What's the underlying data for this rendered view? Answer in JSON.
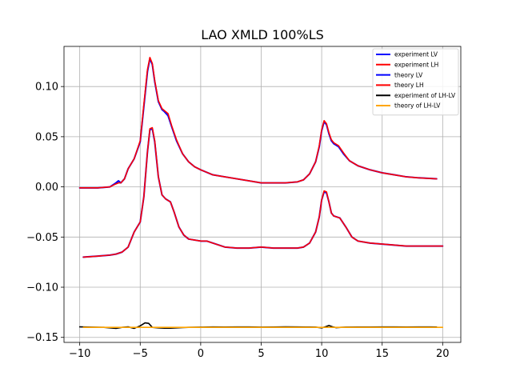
{
  "chart_data": {
    "type": "line",
    "title": "LAO XMLD 100%LS",
    "xlabel": "",
    "ylabel": "",
    "xlim": [
      -11.3,
      21.5
    ],
    "ylim": [
      -0.155,
      0.14
    ],
    "x_ticks": [
      -10,
      -5,
      0,
      5,
      10,
      15,
      20
    ],
    "x_tick_labels": [
      "−10",
      "−5",
      "0",
      "5",
      "10",
      "15",
      "20"
    ],
    "y_ticks": [
      0.1,
      0.05,
      0.0,
      -0.05,
      -0.1,
      -0.15
    ],
    "y_tick_labels": [
      "0.10",
      "0.05",
      "0.00",
      "−0.05",
      "−0.10",
      "−0.15"
    ],
    "grid": true,
    "legend_position": "top-right",
    "series": [
      {
        "name": "experiment LV",
        "color": "#0000ff",
        "x": [
          -10,
          -8.5,
          -7.5,
          -7.0,
          -6.8,
          -6.6,
          -6.3,
          -6.0,
          -5.5,
          -5.0,
          -4.7,
          -4.4,
          -4.2,
          -4.0,
          -3.8,
          -3.5,
          -3.2,
          -3.0,
          -2.7,
          -2.4,
          -2.0,
          -1.5,
          -1.0,
          -0.5,
          0,
          1,
          2,
          3,
          4,
          5,
          6,
          7,
          8,
          8.5,
          9.0,
          9.5,
          9.8,
          10.0,
          10.2,
          10.4,
          10.6,
          10.8,
          11.0,
          11.4,
          11.8,
          12.3,
          13,
          14,
          15,
          16,
          17,
          18,
          19.5
        ],
        "y": [
          -0.001,
          -0.001,
          0.0,
          0.004,
          0.006,
          0.004,
          0.008,
          0.018,
          0.028,
          0.045,
          0.08,
          0.115,
          0.128,
          0.122,
          0.105,
          0.085,
          0.077,
          0.075,
          0.071,
          0.06,
          0.046,
          0.033,
          0.025,
          0.02,
          0.017,
          0.012,
          0.01,
          0.008,
          0.006,
          0.004,
          0.004,
          0.004,
          0.005,
          0.007,
          0.013,
          0.025,
          0.04,
          0.056,
          0.065,
          0.062,
          0.053,
          0.046,
          0.043,
          0.04,
          0.033,
          0.026,
          0.021,
          0.017,
          0.014,
          0.012,
          0.01,
          0.009,
          0.008
        ]
      },
      {
        "name": "experiment LH",
        "color": "#ff0000",
        "x": [
          -10,
          -8.5,
          -7.5,
          -7.0,
          -6.8,
          -6.6,
          -6.3,
          -6.0,
          -5.5,
          -5.0,
          -4.7,
          -4.4,
          -4.2,
          -4.0,
          -3.8,
          -3.5,
          -3.2,
          -3.0,
          -2.7,
          -2.4,
          -2.0,
          -1.5,
          -1.0,
          -0.5,
          0,
          1,
          2,
          3,
          4,
          5,
          6,
          7,
          8,
          8.5,
          9.0,
          9.5,
          9.8,
          10.0,
          10.2,
          10.4,
          10.6,
          10.8,
          11.0,
          11.4,
          11.8,
          12.3,
          13,
          14,
          15,
          16,
          17,
          18,
          19.5
        ],
        "y": [
          -0.001,
          -0.001,
          0.0,
          0.003,
          0.004,
          0.004,
          0.008,
          0.018,
          0.028,
          0.046,
          0.082,
          0.117,
          0.129,
          0.123,
          0.106,
          0.086,
          0.078,
          0.076,
          0.073,
          0.061,
          0.047,
          0.033,
          0.025,
          0.02,
          0.017,
          0.012,
          0.01,
          0.008,
          0.006,
          0.004,
          0.004,
          0.004,
          0.005,
          0.007,
          0.013,
          0.025,
          0.041,
          0.057,
          0.066,
          0.063,
          0.054,
          0.047,
          0.044,
          0.041,
          0.034,
          0.026,
          0.021,
          0.017,
          0.014,
          0.012,
          0.01,
          0.009,
          0.008
        ]
      },
      {
        "name": "theory LV",
        "color": "#0000ff",
        "x": [
          -9.7,
          -8.5,
          -7.5,
          -7.0,
          -6.5,
          -6.0,
          -5.5,
          -5.0,
          -4.7,
          -4.4,
          -4.2,
          -4.0,
          -3.8,
          -3.5,
          -3.2,
          -2.9,
          -2.5,
          -2.2,
          -1.8,
          -1.4,
          -1.0,
          -0.5,
          0,
          0.5,
          1,
          2,
          3,
          4,
          5,
          6,
          7,
          8,
          8.5,
          9.0,
          9.5,
          9.8,
          10.0,
          10.2,
          10.4,
          10.6,
          10.8,
          11.0,
          11.5,
          12.0,
          12.5,
          13,
          14,
          15,
          16,
          17,
          18,
          19,
          20
        ],
        "y": [
          -0.07,
          -0.069,
          -0.068,
          -0.067,
          -0.065,
          -0.06,
          -0.045,
          -0.035,
          -0.01,
          0.035,
          0.057,
          0.058,
          0.045,
          0.01,
          -0.008,
          -0.012,
          -0.015,
          -0.025,
          -0.04,
          -0.048,
          -0.052,
          -0.053,
          -0.054,
          -0.054,
          -0.056,
          -0.06,
          -0.061,
          -0.061,
          -0.06,
          -0.061,
          -0.061,
          -0.061,
          -0.06,
          -0.056,
          -0.045,
          -0.03,
          -0.013,
          -0.005,
          -0.006,
          -0.015,
          -0.026,
          -0.029,
          -0.031,
          -0.04,
          -0.05,
          -0.054,
          -0.056,
          -0.057,
          -0.058,
          -0.059,
          -0.059,
          -0.059,
          -0.059
        ]
      },
      {
        "name": "theory LH",
        "color": "#ff0000",
        "x": [
          -9.7,
          -8.5,
          -7.5,
          -7.0,
          -6.5,
          -6.0,
          -5.5,
          -5.0,
          -4.7,
          -4.4,
          -4.2,
          -4.0,
          -3.8,
          -3.5,
          -3.2,
          -2.9,
          -2.5,
          -2.2,
          -1.8,
          -1.4,
          -1.0,
          -0.5,
          0,
          0.5,
          1,
          2,
          3,
          4,
          5,
          6,
          7,
          8,
          8.5,
          9.0,
          9.5,
          9.8,
          10.0,
          10.2,
          10.4,
          10.6,
          10.8,
          11.0,
          11.5,
          12.0,
          12.5,
          13,
          14,
          15,
          16,
          17,
          18,
          19,
          20
        ],
        "y": [
          -0.07,
          -0.069,
          -0.068,
          -0.067,
          -0.065,
          -0.06,
          -0.045,
          -0.035,
          -0.01,
          0.035,
          0.058,
          0.059,
          0.046,
          0.01,
          -0.008,
          -0.012,
          -0.015,
          -0.025,
          -0.04,
          -0.048,
          -0.052,
          -0.053,
          -0.054,
          -0.054,
          -0.056,
          -0.06,
          -0.061,
          -0.061,
          -0.06,
          -0.061,
          -0.061,
          -0.061,
          -0.06,
          -0.056,
          -0.045,
          -0.03,
          -0.013,
          -0.004,
          -0.005,
          -0.015,
          -0.026,
          -0.029,
          -0.031,
          -0.04,
          -0.05,
          -0.054,
          -0.056,
          -0.057,
          -0.058,
          -0.059,
          -0.059,
          -0.059,
          -0.059
        ]
      },
      {
        "name": "experiment of LH-LV",
        "color": "#000000",
        "x": [
          -10,
          -9.0,
          -8.0,
          -7.0,
          -6.5,
          -6.0,
          -5.5,
          -5.0,
          -4.6,
          -4.3,
          -4.0,
          -3.5,
          -3.0,
          -2.5,
          -2.0,
          -1.5,
          -1.0,
          0,
          1,
          2,
          3,
          4,
          5,
          6,
          7,
          8,
          9,
          9.5,
          9.8,
          10.0,
          10.3,
          10.6,
          10.9,
          11.2,
          11.6,
          12,
          13,
          14,
          15,
          16,
          17,
          18,
          19,
          19.5
        ],
        "y": [
          -0.1395,
          -0.1398,
          -0.14,
          -0.141,
          -0.14,
          -0.1395,
          -0.141,
          -0.1385,
          -0.1355,
          -0.136,
          -0.14,
          -0.1405,
          -0.1408,
          -0.1408,
          -0.1405,
          -0.1402,
          -0.14,
          -0.1398,
          -0.1396,
          -0.1397,
          -0.1396,
          -0.1396,
          -0.1398,
          -0.1397,
          -0.1395,
          -0.1396,
          -0.1397,
          -0.1398,
          -0.1402,
          -0.1405,
          -0.1395,
          -0.1382,
          -0.1395,
          -0.1403,
          -0.14,
          -0.1398,
          -0.1397,
          -0.1397,
          -0.1396,
          -0.1396,
          -0.1397,
          -0.1396,
          -0.1396,
          -0.1397
        ]
      },
      {
        "name": "theory of LH-LV",
        "color": "#ffa500",
        "x": [
          -9.7,
          -7,
          -5,
          -4.3,
          -3,
          0,
          5,
          10,
          10.3,
          15,
          20
        ],
        "y": [
          -0.14,
          -0.14,
          -0.14,
          -0.14,
          -0.14,
          -0.14,
          -0.14,
          -0.14,
          -0.14,
          -0.14,
          -0.14
        ]
      }
    ]
  }
}
